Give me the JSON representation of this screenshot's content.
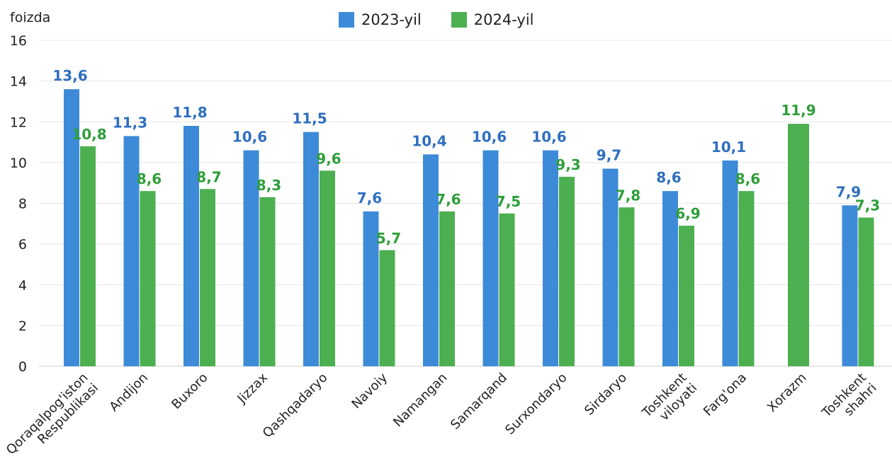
{
  "chart_data": {
    "type": "bar",
    "ylabel": "foizda",
    "ylim": [
      0,
      16
    ],
    "yticks": [
      0,
      2,
      4,
      6,
      8,
      10,
      12,
      14,
      16
    ],
    "grid": true,
    "legend_position": "top-center",
    "categories": [
      "Qoraqalpog'iston Respublikasi",
      "Andijon",
      "Buxoro",
      "Jizzax",
      "Qashqadaryo",
      "Navoiy",
      "Namangan",
      "Samarqand",
      "Surxondaryo",
      "Sirdaryo",
      "Toshkent viloyati",
      "Farg'ona",
      "Xorazm",
      "Toshkent shahri"
    ],
    "series": [
      {
        "name": "2023-yil",
        "color": "#3d8bd8",
        "label_color": "#2f6fbf",
        "values": [
          13.6,
          11.3,
          11.8,
          10.6,
          11.5,
          7.6,
          10.4,
          10.6,
          10.6,
          9.7,
          8.6,
          10.1,
          null,
          7.9
        ],
        "labels": [
          "13,6",
          "11,3",
          "11,8",
          "10,6",
          "11,5",
          "7,6",
          "10,4",
          "10,6",
          "10,6",
          "9,7",
          "8,6",
          "10,1",
          "",
          "7,9"
        ]
      },
      {
        "name": "2024-yil",
        "color": "#4caf50",
        "label_color": "#2e9e3a",
        "values": [
          10.8,
          8.6,
          8.7,
          8.3,
          9.6,
          5.7,
          7.6,
          7.5,
          9.3,
          7.8,
          6.9,
          8.6,
          11.9,
          7.3
        ],
        "labels": [
          "10,8",
          "8,6",
          "8,7",
          "8,3",
          "9,6",
          "5,7",
          "7,6",
          "7,5",
          "9,3",
          "7,8",
          "6,9",
          "8,6",
          "11,9",
          "7,3"
        ]
      }
    ]
  }
}
